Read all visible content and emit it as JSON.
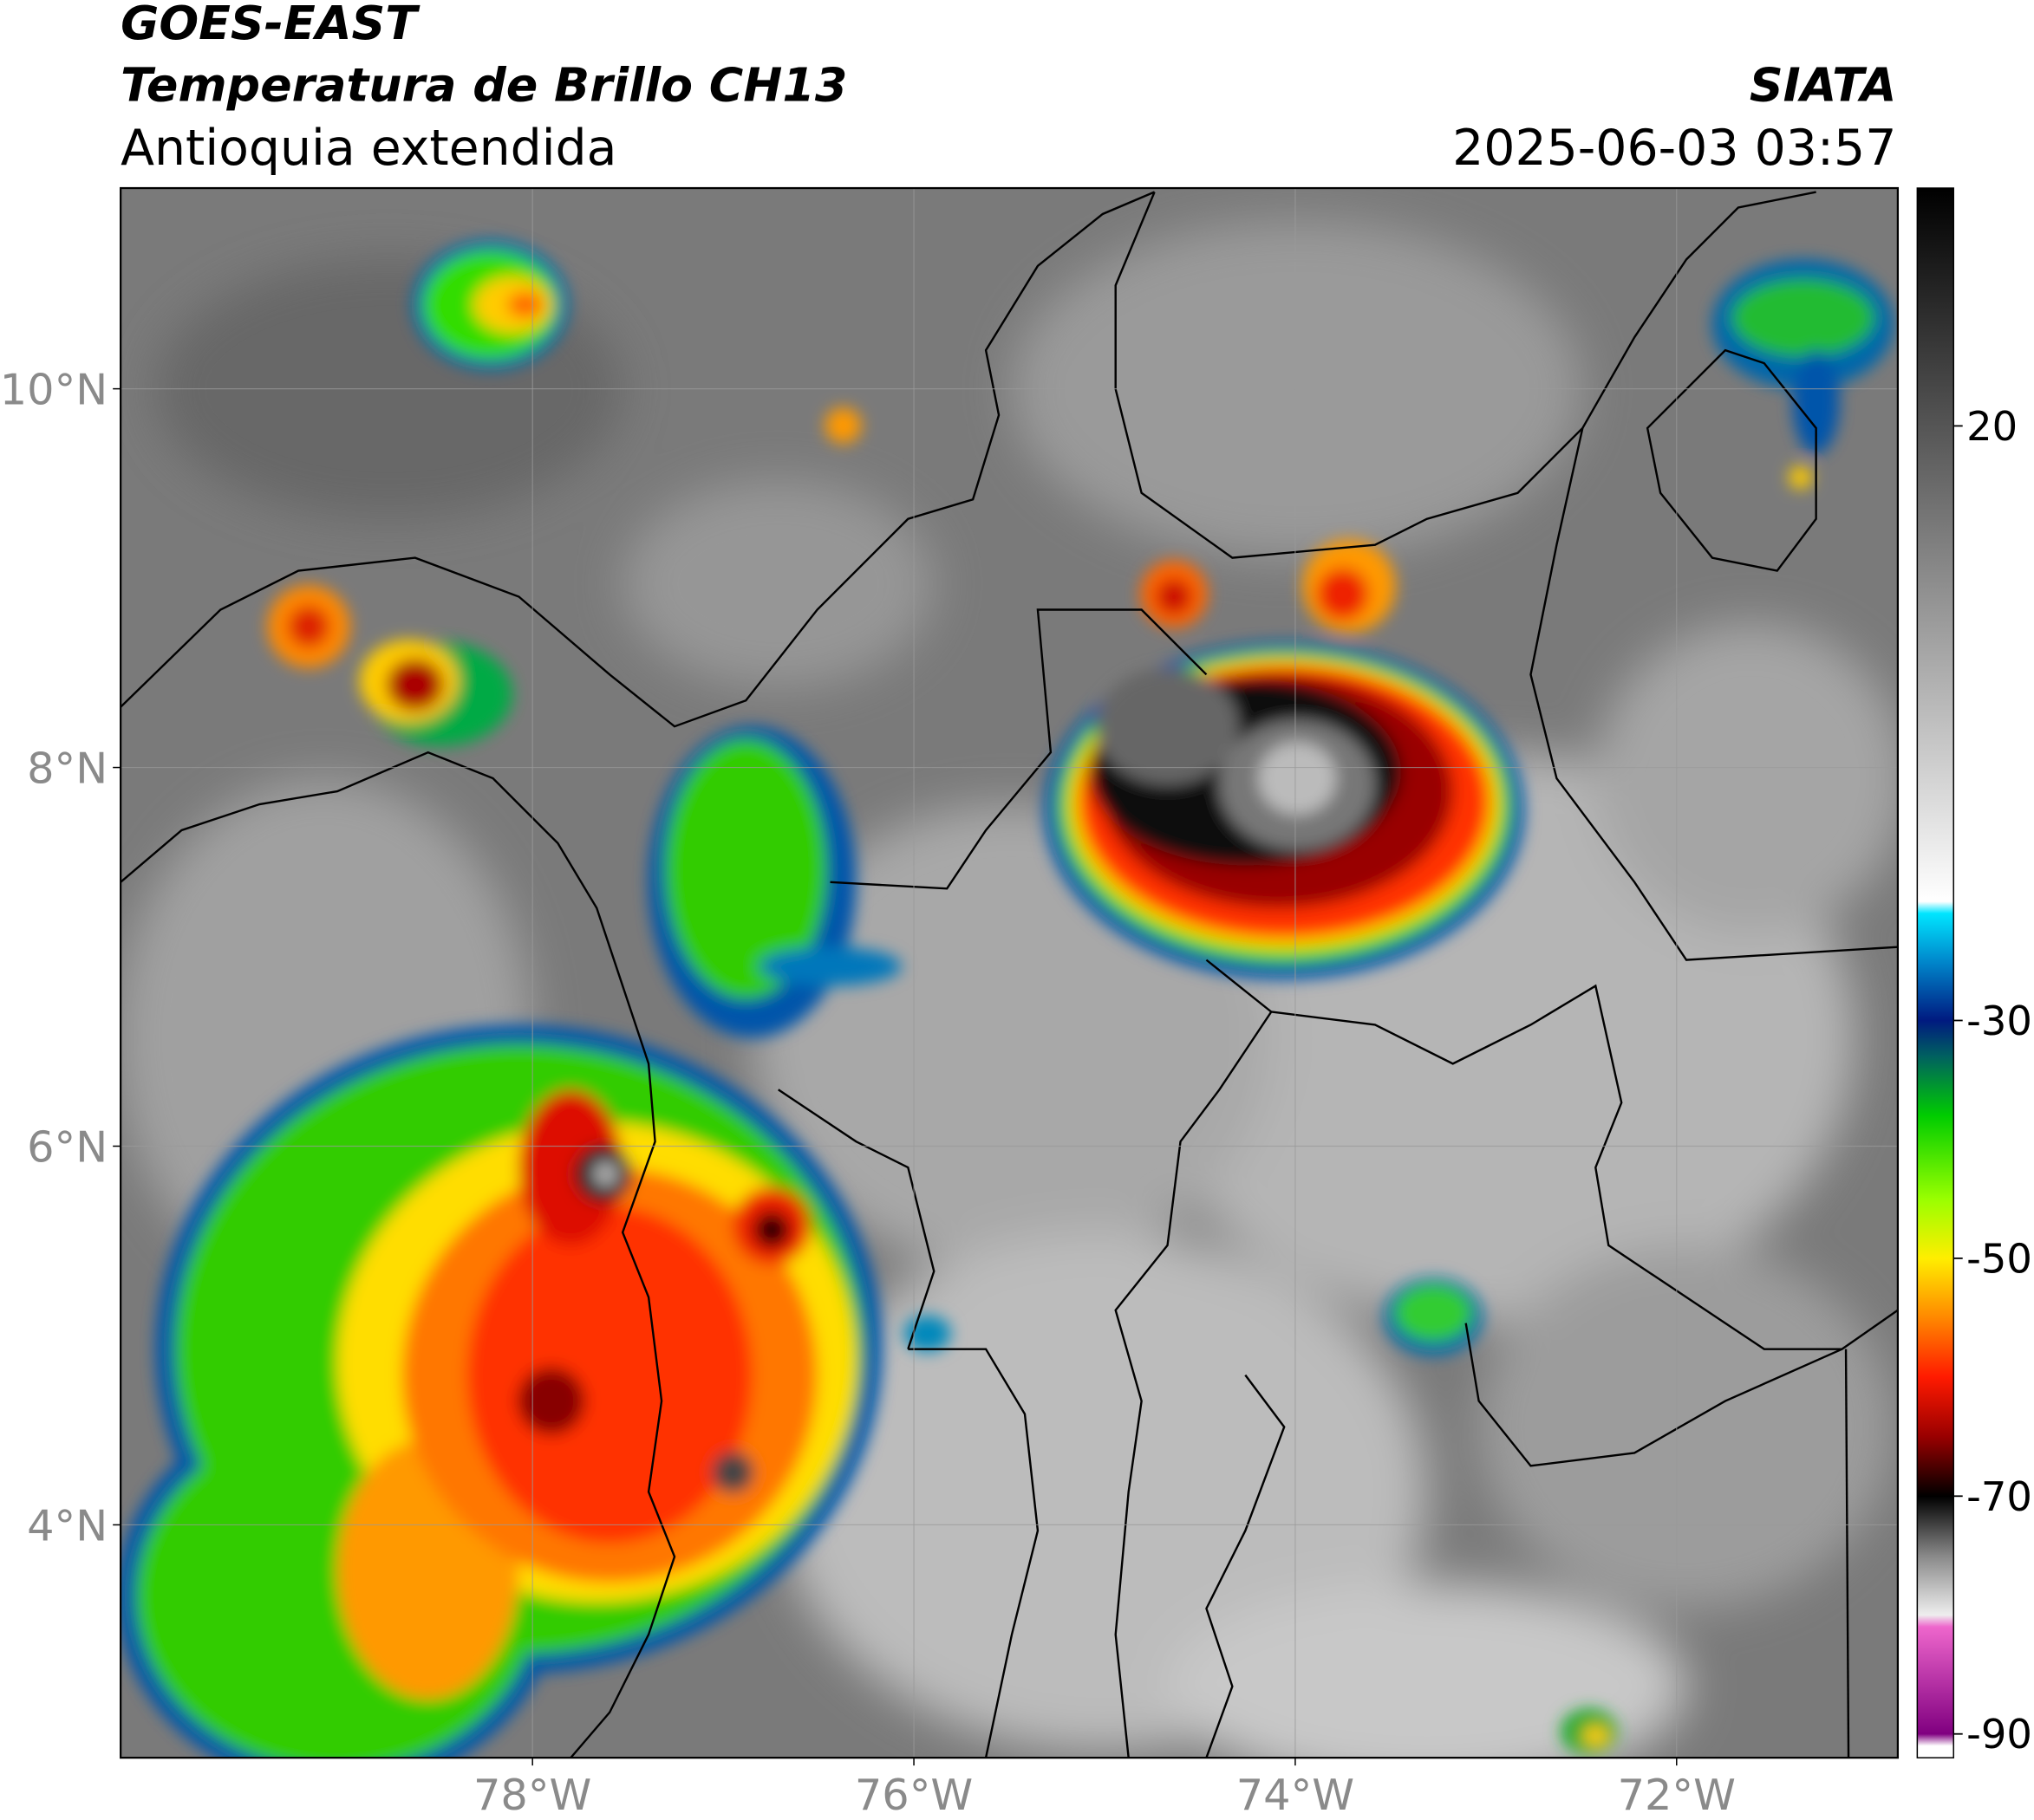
{
  "header": {
    "title": "GOES-EAST",
    "subtitle": "Temperatura de Brillo CH13",
    "region": "Antioquia extendida",
    "source": "SIATA",
    "datetime": "2025-06-03 03:57"
  },
  "map": {
    "xlim": [
      -80.16,
      -70.84
    ],
    "ylim": [
      2.77,
      11.06
    ],
    "xticks": [
      {
        "value": -78,
        "label": "78°W"
      },
      {
        "value": -76,
        "label": "76°W"
      },
      {
        "value": -74,
        "label": "74°W"
      },
      {
        "value": -72,
        "label": "72°W"
      }
    ],
    "yticks": [
      {
        "value": 10,
        "label": "10°N"
      },
      {
        "value": 8,
        "label": "8°N"
      },
      {
        "value": 6,
        "label": "6°N"
      },
      {
        "value": 4,
        "label": "4°N"
      }
    ],
    "grid": true
  },
  "colorbar": {
    "clim": [
      -92,
      40
    ],
    "ticks": [
      20,
      -30,
      -50,
      -70,
      -90
    ],
    "stops": [
      {
        "value": 40,
        "color": "#000000"
      },
      {
        "value": 20,
        "color": "#555555"
      },
      {
        "value": -20,
        "color": "#ffffff"
      },
      {
        "value": -21,
        "color": "#00e5ff"
      },
      {
        "value": -25,
        "color": "#0088cc"
      },
      {
        "value": -30,
        "color": "#001a80"
      },
      {
        "value": -33,
        "color": "#006060"
      },
      {
        "value": -38,
        "color": "#00cc00"
      },
      {
        "value": -45,
        "color": "#99ff00"
      },
      {
        "value": -50,
        "color": "#ffee00"
      },
      {
        "value": -55,
        "color": "#ff8800"
      },
      {
        "value": -60,
        "color": "#ff1a00"
      },
      {
        "value": -65,
        "color": "#990000"
      },
      {
        "value": -70,
        "color": "#000000"
      },
      {
        "value": -75,
        "color": "#888888"
      },
      {
        "value": -80,
        "color": "#eeeeee"
      },
      {
        "value": -81,
        "color": "#ee66cc"
      },
      {
        "value": -90,
        "color": "#800080"
      },
      {
        "value": -91,
        "color": "#ffffff"
      },
      {
        "value": -92,
        "color": "#ffffff"
      }
    ]
  }
}
